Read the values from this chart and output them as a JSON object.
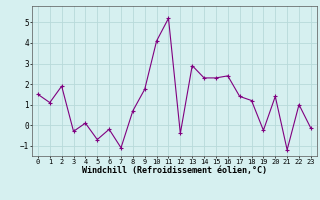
{
  "x": [
    0,
    1,
    2,
    3,
    4,
    5,
    6,
    7,
    8,
    9,
    10,
    11,
    12,
    13,
    14,
    15,
    16,
    17,
    18,
    19,
    20,
    21,
    22,
    23
  ],
  "y": [
    1.5,
    1.1,
    1.9,
    -0.3,
    0.1,
    -0.7,
    -0.2,
    -1.1,
    0.7,
    1.75,
    4.1,
    5.2,
    -0.4,
    2.9,
    2.3,
    2.3,
    2.4,
    1.4,
    1.2,
    -0.25,
    1.4,
    -1.2,
    1.0,
    -0.15
  ],
  "line_color": "#800080",
  "marker": "+",
  "marker_size": 3,
  "linewidth": 0.8,
  "bg_color": "#d6f0f0",
  "grid_color": "#b8dada",
  "xlabel": "Windchill (Refroidissement éolien,°C)",
  "xlabel_fontsize": 6.0,
  "xlabel_fontfamily": "monospace",
  "tick_fontsize": 5.5,
  "ylim": [
    -1.5,
    5.8
  ],
  "xlim": [
    -0.5,
    23.5
  ],
  "yticks": [
    -1,
    0,
    1,
    2,
    3,
    4,
    5
  ],
  "xticks": [
    0,
    1,
    2,
    3,
    4,
    5,
    6,
    7,
    8,
    9,
    10,
    11,
    12,
    13,
    14,
    15,
    16,
    17,
    18,
    19,
    20,
    21,
    22,
    23
  ]
}
